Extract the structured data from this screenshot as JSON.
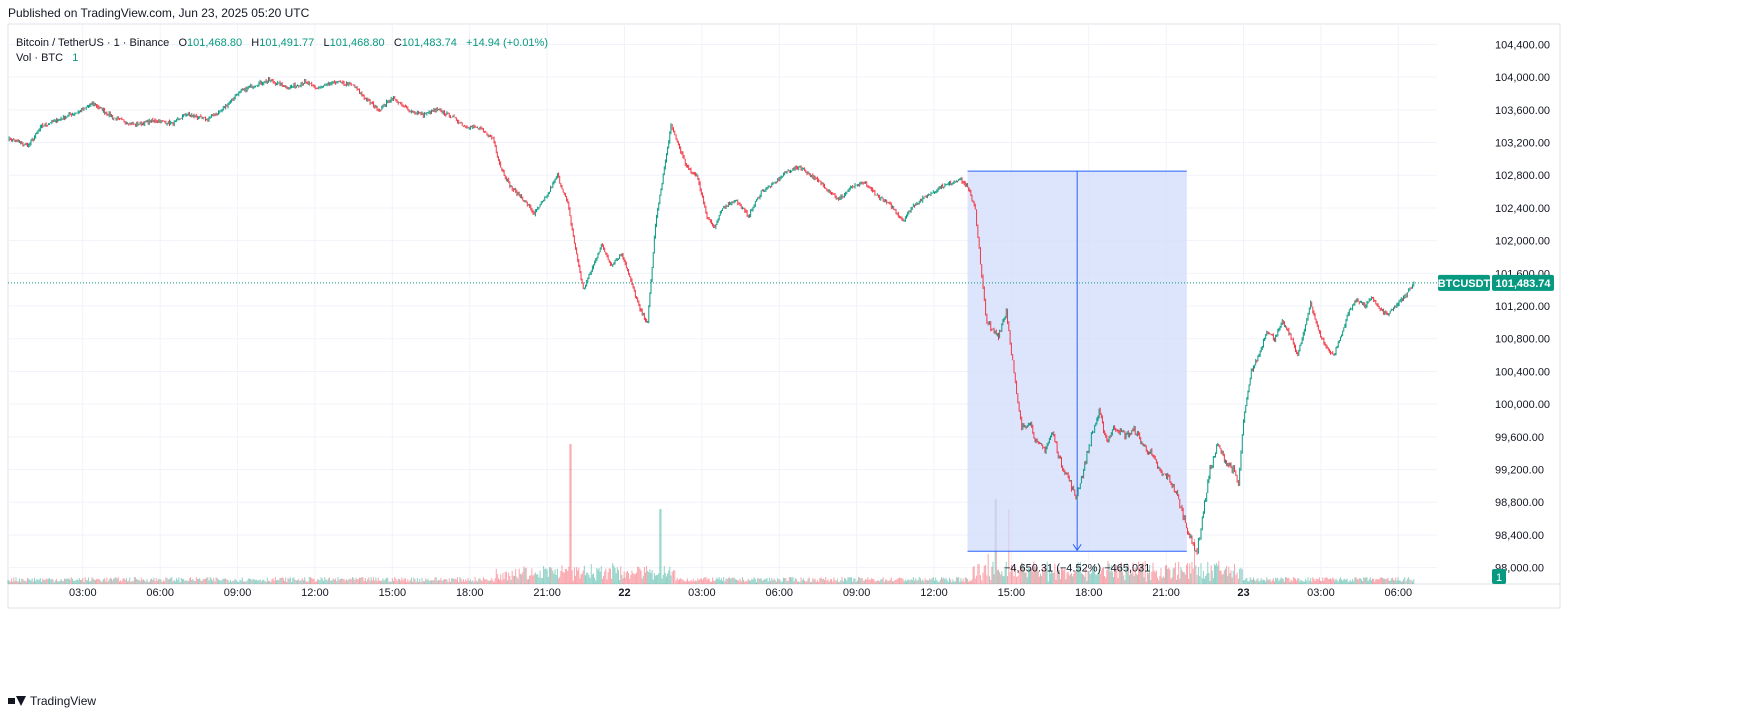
{
  "header": {
    "published": "Published on TradingView.com, Jun 23, 2025 05:20 UTC"
  },
  "legend": {
    "symbol": "Bitcoin / TetherUS · 1 · Binance",
    "o_label": "O",
    "o_value": "101,468.80",
    "h_label": "H",
    "h_value": "101,491.77",
    "l_label": "L",
    "l_value": "101,468.80",
    "c_label": "C",
    "c_value": "101,483.74",
    "change": "+14.94 (+0.01%)",
    "vol_label": "Vol · BTC",
    "vol_value": "1"
  },
  "price_badge": {
    "symbol": "BTCUSDT",
    "price": "101,483.74"
  },
  "volume_badge": "1",
  "measure": {
    "label": "−4,650.31 (−4.52%) −465,031"
  },
  "footer": {
    "brand": "TradingView"
  },
  "colors": {
    "up": "#089981",
    "down": "#f23645",
    "measure_fill": "#cfdafc",
    "measure_line": "#2962ff",
    "grid": "#f0f3fa"
  },
  "chart_data": {
    "type": "candlestick",
    "title": "Bitcoin / TetherUS · 1 · Binance",
    "y_ticks": [
      104400,
      104000,
      103600,
      103200,
      102800,
      102400,
      102000,
      101600,
      101200,
      100800,
      100400,
      100000,
      99600,
      99200,
      98800,
      98400,
      98000
    ],
    "y_tick_labels": [
      "104,400.00",
      "104,000.00",
      "103,600.00",
      "103,200.00",
      "102,800.00",
      "102,400.00",
      "102,000.00",
      "101,600.00",
      "101,200.00",
      "100,800.00",
      "100,400.00",
      "100,000.00",
      "99,600.00",
      "99,200.00",
      "98,800.00",
      "98,400.00",
      "98,000.00"
    ],
    "ylim": [
      97800,
      104650
    ],
    "x_ticks": [
      "03:00",
      "06:00",
      "09:00",
      "12:00",
      "15:00",
      "18:00",
      "21:00",
      "22",
      "03:00",
      "06:00",
      "09:00",
      "12:00",
      "15:00",
      "18:00",
      "21:00",
      "23",
      "03:00",
      "06:00"
    ],
    "x_tick_hours": [
      3,
      6,
      9,
      12,
      15,
      18,
      21,
      24,
      27,
      30,
      33,
      36,
      39,
      42,
      45,
      48,
      51,
      54
    ],
    "xlim_hours": [
      0.1,
      55.5
    ],
    "last_price": 101483.74,
    "series": [
      {
        "name": "price",
        "points": [
          [
            0.1,
            103250
          ],
          [
            0.9,
            103160
          ],
          [
            1.4,
            103400
          ],
          [
            2.2,
            103500
          ],
          [
            3.0,
            103600
          ],
          [
            3.4,
            103680
          ],
          [
            4.2,
            103500
          ],
          [
            5.0,
            103420
          ],
          [
            5.8,
            103470
          ],
          [
            6.5,
            103430
          ],
          [
            7.0,
            103550
          ],
          [
            7.8,
            103480
          ],
          [
            8.4,
            103600
          ],
          [
            9.0,
            103800
          ],
          [
            9.6,
            103900
          ],
          [
            10.2,
            103960
          ],
          [
            11.0,
            103870
          ],
          [
            11.6,
            103940
          ],
          [
            12.1,
            103860
          ],
          [
            12.8,
            103940
          ],
          [
            13.5,
            103900
          ],
          [
            14.0,
            103720
          ],
          [
            14.5,
            103600
          ],
          [
            15.0,
            103750
          ],
          [
            15.6,
            103600
          ],
          [
            16.2,
            103540
          ],
          [
            16.7,
            103600
          ],
          [
            17.3,
            103520
          ],
          [
            17.8,
            103400
          ],
          [
            18.3,
            103380
          ],
          [
            18.9,
            103250
          ],
          [
            19.2,
            102900
          ],
          [
            19.6,
            102650
          ],
          [
            20.1,
            102500
          ],
          [
            20.5,
            102330
          ],
          [
            21.0,
            102550
          ],
          [
            21.4,
            102800
          ],
          [
            21.8,
            102450
          ],
          [
            22.1,
            101900
          ],
          [
            22.4,
            101400
          ],
          [
            22.8,
            101700
          ],
          [
            23.1,
            101950
          ],
          [
            23.5,
            101700
          ],
          [
            23.9,
            101850
          ],
          [
            24.2,
            101550
          ],
          [
            24.6,
            101150
          ],
          [
            24.9,
            101000
          ],
          [
            25.2,
            102200
          ],
          [
            25.5,
            102800
          ],
          [
            25.8,
            103400
          ],
          [
            26.0,
            103250
          ],
          [
            26.4,
            102900
          ],
          [
            26.8,
            102800
          ],
          [
            27.2,
            102300
          ],
          [
            27.5,
            102150
          ],
          [
            27.8,
            102400
          ],
          [
            28.3,
            102500
          ],
          [
            28.8,
            102300
          ],
          [
            29.3,
            102600
          ],
          [
            29.8,
            102700
          ],
          [
            30.3,
            102850
          ],
          [
            30.8,
            102900
          ],
          [
            31.3,
            102780
          ],
          [
            31.8,
            102650
          ],
          [
            32.3,
            102500
          ],
          [
            32.8,
            102650
          ],
          [
            33.3,
            102700
          ],
          [
            33.8,
            102550
          ],
          [
            34.3,
            102430
          ],
          [
            34.8,
            102250
          ],
          [
            35.2,
            102430
          ],
          [
            35.7,
            102540
          ],
          [
            36.2,
            102650
          ],
          [
            36.6,
            102700
          ],
          [
            37.0,
            102760
          ],
          [
            37.3,
            102650
          ],
          [
            37.6,
            102400
          ],
          [
            37.8,
            101700
          ],
          [
            38.0,
            101100
          ],
          [
            38.2,
            100900
          ],
          [
            38.5,
            100850
          ],
          [
            38.8,
            101150
          ],
          [
            39.0,
            100650
          ],
          [
            39.2,
            100100
          ],
          [
            39.4,
            99700
          ],
          [
            39.7,
            99800
          ],
          [
            40.0,
            99500
          ],
          [
            40.3,
            99450
          ],
          [
            40.6,
            99650
          ],
          [
            40.9,
            99300
          ],
          [
            41.2,
            99100
          ],
          [
            41.5,
            98850
          ],
          [
            41.8,
            99200
          ],
          [
            42.1,
            99600
          ],
          [
            42.4,
            99900
          ],
          [
            42.7,
            99550
          ],
          [
            43.0,
            99720
          ],
          [
            43.4,
            99620
          ],
          [
            43.8,
            99680
          ],
          [
            44.1,
            99500
          ],
          [
            44.4,
            99400
          ],
          [
            44.8,
            99150
          ],
          [
            45.1,
            99100
          ],
          [
            45.4,
            98900
          ],
          [
            45.7,
            98600
          ],
          [
            46.0,
            98300
          ],
          [
            46.2,
            98200
          ],
          [
            46.4,
            98600
          ],
          [
            46.7,
            99200
          ],
          [
            47.0,
            99500
          ],
          [
            47.3,
            99300
          ],
          [
            47.6,
            99200
          ],
          [
            47.8,
            99000
          ],
          [
            48.0,
            99800
          ],
          [
            48.3,
            100400
          ],
          [
            48.6,
            100600
          ],
          [
            48.9,
            100900
          ],
          [
            49.2,
            100800
          ],
          [
            49.5,
            101000
          ],
          [
            49.8,
            100850
          ],
          [
            50.1,
            100600
          ],
          [
            50.4,
            100950
          ],
          [
            50.6,
            101250
          ],
          [
            50.9,
            100900
          ],
          [
            51.2,
            100700
          ],
          [
            51.5,
            100600
          ],
          [
            51.8,
            100850
          ],
          [
            52.1,
            101150
          ],
          [
            52.4,
            101280
          ],
          [
            52.7,
            101200
          ],
          [
            53.0,
            101300
          ],
          [
            53.3,
            101150
          ],
          [
            53.6,
            101100
          ],
          [
            53.9,
            101200
          ],
          [
            54.2,
            101300
          ],
          [
            54.4,
            101380
          ],
          [
            54.6,
            101483.74
          ]
        ]
      }
    ],
    "volume_peaks": [
      [
        21.9,
        140
      ],
      [
        25.4,
        75
      ],
      [
        38.1,
        30
      ],
      [
        38.4,
        85
      ],
      [
        38.9,
        75
      ],
      [
        46.1,
        45
      ]
    ],
    "measure_range": {
      "x_start_hours": 37.3,
      "x_end_hours": 45.8,
      "y_top": 102850,
      "y_bottom": 98200,
      "change": -4650.31,
      "change_pct": -4.52,
      "volume": -465031
    }
  }
}
